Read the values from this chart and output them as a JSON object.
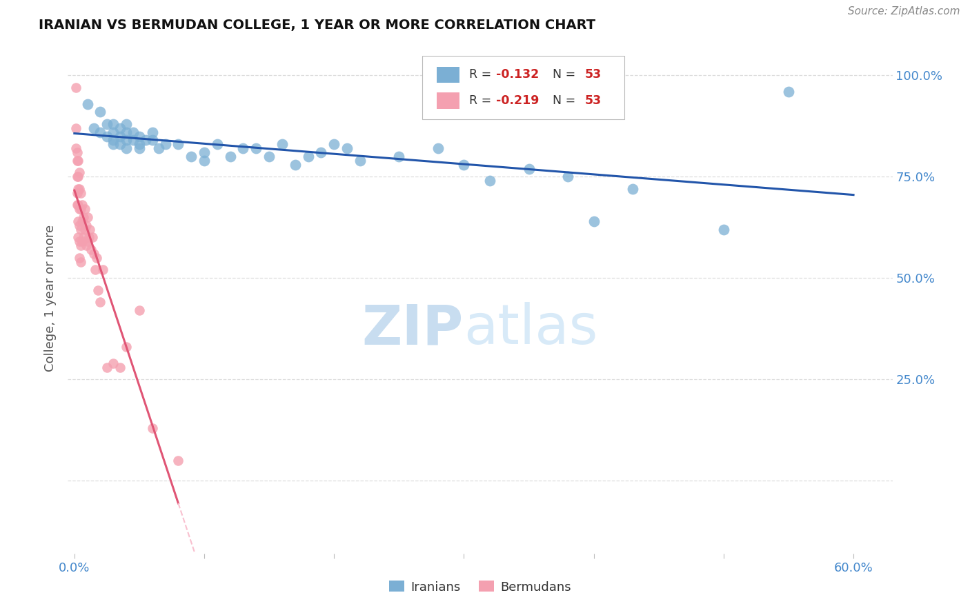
{
  "title": "IRANIAN VS BERMUDAN COLLEGE, 1 YEAR OR MORE CORRELATION CHART",
  "source": "Source: ZipAtlas.com",
  "ylabel": "College, 1 year or more",
  "watermark_zip": "ZIP",
  "watermark_atlas": "atlas",
  "xlim": [
    -0.005,
    0.63
  ],
  "ylim": [
    -0.18,
    1.08
  ],
  "x_tick_pos": [
    0.0,
    0.1,
    0.2,
    0.3,
    0.4,
    0.5,
    0.6
  ],
  "x_tick_labels": [
    "0.0%",
    "",
    "",
    "",
    "",
    "",
    "60.0%"
  ],
  "y_tick_pos": [
    0.0,
    0.25,
    0.5,
    0.75,
    1.0
  ],
  "y_tick_labels_right": [
    "",
    "25.0%",
    "50.0%",
    "75.0%",
    "100.0%"
  ],
  "iranian_points": [
    [
      0.01,
      0.93
    ],
    [
      0.015,
      0.87
    ],
    [
      0.02,
      0.91
    ],
    [
      0.02,
      0.86
    ],
    [
      0.025,
      0.88
    ],
    [
      0.025,
      0.85
    ],
    [
      0.03,
      0.88
    ],
    [
      0.03,
      0.86
    ],
    [
      0.03,
      0.84
    ],
    [
      0.03,
      0.83
    ],
    [
      0.035,
      0.87
    ],
    [
      0.035,
      0.85
    ],
    [
      0.035,
      0.83
    ],
    [
      0.04,
      0.88
    ],
    [
      0.04,
      0.86
    ],
    [
      0.04,
      0.84
    ],
    [
      0.04,
      0.82
    ],
    [
      0.045,
      0.86
    ],
    [
      0.045,
      0.84
    ],
    [
      0.05,
      0.85
    ],
    [
      0.05,
      0.83
    ],
    [
      0.05,
      0.82
    ],
    [
      0.055,
      0.84
    ],
    [
      0.06,
      0.86
    ],
    [
      0.06,
      0.84
    ],
    [
      0.065,
      0.82
    ],
    [
      0.07,
      0.83
    ],
    [
      0.08,
      0.83
    ],
    [
      0.09,
      0.8
    ],
    [
      0.1,
      0.81
    ],
    [
      0.1,
      0.79
    ],
    [
      0.11,
      0.83
    ],
    [
      0.12,
      0.8
    ],
    [
      0.13,
      0.82
    ],
    [
      0.14,
      0.82
    ],
    [
      0.15,
      0.8
    ],
    [
      0.16,
      0.83
    ],
    [
      0.17,
      0.78
    ],
    [
      0.18,
      0.8
    ],
    [
      0.19,
      0.81
    ],
    [
      0.2,
      0.83
    ],
    [
      0.21,
      0.82
    ],
    [
      0.22,
      0.79
    ],
    [
      0.25,
      0.8
    ],
    [
      0.28,
      0.82
    ],
    [
      0.3,
      0.78
    ],
    [
      0.32,
      0.74
    ],
    [
      0.35,
      0.77
    ],
    [
      0.38,
      0.75
    ],
    [
      0.4,
      0.64
    ],
    [
      0.43,
      0.72
    ],
    [
      0.5,
      0.62
    ],
    [
      0.55,
      0.96
    ]
  ],
  "bermudan_points": [
    [
      0.001,
      0.97
    ],
    [
      0.001,
      0.87
    ],
    [
      0.001,
      0.82
    ],
    [
      0.002,
      0.81
    ],
    [
      0.002,
      0.79
    ],
    [
      0.002,
      0.75
    ],
    [
      0.002,
      0.71
    ],
    [
      0.002,
      0.68
    ],
    [
      0.003,
      0.79
    ],
    [
      0.003,
      0.75
    ],
    [
      0.003,
      0.72
    ],
    [
      0.003,
      0.68
    ],
    [
      0.003,
      0.64
    ],
    [
      0.003,
      0.6
    ],
    [
      0.004,
      0.76
    ],
    [
      0.004,
      0.72
    ],
    [
      0.004,
      0.67
    ],
    [
      0.004,
      0.63
    ],
    [
      0.004,
      0.59
    ],
    [
      0.004,
      0.55
    ],
    [
      0.005,
      0.71
    ],
    [
      0.005,
      0.67
    ],
    [
      0.005,
      0.62
    ],
    [
      0.005,
      0.58
    ],
    [
      0.005,
      0.54
    ],
    [
      0.006,
      0.68
    ],
    [
      0.006,
      0.64
    ],
    [
      0.006,
      0.59
    ],
    [
      0.007,
      0.65
    ],
    [
      0.007,
      0.6
    ],
    [
      0.008,
      0.67
    ],
    [
      0.008,
      0.62
    ],
    [
      0.009,
      0.63
    ],
    [
      0.009,
      0.58
    ],
    [
      0.01,
      0.65
    ],
    [
      0.01,
      0.59
    ],
    [
      0.011,
      0.6
    ],
    [
      0.012,
      0.62
    ],
    [
      0.013,
      0.57
    ],
    [
      0.014,
      0.6
    ],
    [
      0.015,
      0.56
    ],
    [
      0.016,
      0.52
    ],
    [
      0.017,
      0.55
    ],
    [
      0.018,
      0.47
    ],
    [
      0.02,
      0.44
    ],
    [
      0.022,
      0.52
    ],
    [
      0.025,
      0.28
    ],
    [
      0.03,
      0.29
    ],
    [
      0.035,
      0.28
    ],
    [
      0.04,
      0.33
    ],
    [
      0.05,
      0.42
    ],
    [
      0.06,
      0.13
    ],
    [
      0.08,
      0.05
    ]
  ],
  "iranian_color": "#7bafd4",
  "bermudan_color": "#f4a0b0",
  "iranian_line_color": "#2255aa",
  "bermudan_line_color": "#e05575",
  "bermudan_line_dash_color": "#f9c0cf",
  "grid_color": "#dddddd",
  "right_label_color": "#4488cc",
  "bottom_label_color": "#333333",
  "legend_r_color": "#cc2222",
  "legend_n_color": "#cc2222",
  "legend_label_color": "#333333"
}
